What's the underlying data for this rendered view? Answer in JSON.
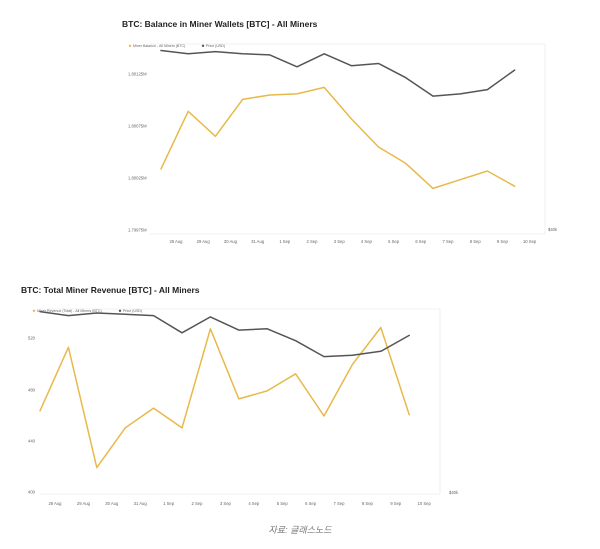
{
  "chart_data": [
    {
      "type": "line",
      "title": "BTC: Balance in Miner Wallets [BTC] - All Miners",
      "legend": [
        "Miner Balance - All Miners (BTC)",
        "Price (USD)"
      ],
      "legend_position": "top-left",
      "x": [
        "28 Aug",
        "29 Aug",
        "30 Aug",
        "31 Aug",
        "1 Sep",
        "2 Sep",
        "3 Sep",
        "4 Sep",
        "5 Sep",
        "6 Sep",
        "7 Sep",
        "8 Sep",
        "9 Sep",
        "10 Sep"
      ],
      "y_ticks": [
        "1.80125M",
        "1.80075M",
        "1.80025M",
        "1.79975M"
      ],
      "y_right_ticks": [
        "$40k"
      ],
      "ylim": [
        1.79975,
        1.8015
      ],
      "series": [
        {
          "name": "Miner Balance - All Miners (BTC)",
          "color": "#e8b94a",
          "values": [
            1.80035,
            1.80088,
            1.80065,
            1.80099,
            1.80103,
            1.80104,
            1.8011,
            1.80081,
            1.80055,
            1.8004,
            1.80017,
            1.80025,
            1.80033,
            1.80019
          ]
        },
        {
          "name": "Price (USD)",
          "color": "#555555",
          "values": [
            1.80144,
            1.80141,
            1.80143,
            1.80141,
            1.8014,
            1.80129,
            1.80141,
            1.8013,
            1.80132,
            1.80119,
            1.80102,
            1.80104,
            1.80108,
            1.80126
          ]
        }
      ]
    },
    {
      "type": "line",
      "title": "BTC: Total Miner Revenue [BTC] - All Miners",
      "legend": [
        "Miner Revenue (Total) - All Miners (BTC)",
        "Price (USD)"
      ],
      "legend_position": "top-left",
      "x": [
        "28 Aug",
        "29 Aug",
        "30 Aug",
        "31 Aug",
        "1 Sep",
        "2 Sep",
        "3 Sep",
        "4 Sep",
        "5 Sep",
        "6 Sep",
        "7 Sep",
        "8 Sep",
        "9 Sep",
        "10 Sep"
      ],
      "y_ticks": [
        "520",
        "480",
        "440",
        "400"
      ],
      "y_right_ticks": [
        "$40k"
      ],
      "ylim": [
        400,
        540
      ],
      "series": [
        {
          "name": "Miner Revenue (Total) - All Miners (BTC)",
          "color": "#e8b94a",
          "values": [
            463,
            511,
            420,
            450,
            465,
            450,
            525,
            472,
            478,
            491,
            459,
            498,
            526,
            460
          ]
        },
        {
          "name": "Price (USD)",
          "color": "#555555",
          "values": [
            538,
            535,
            537,
            536,
            535,
            522,
            534,
            524,
            525,
            516,
            504,
            505,
            508,
            520
          ]
        }
      ]
    }
  ],
  "source": "자료: 글래스노드"
}
